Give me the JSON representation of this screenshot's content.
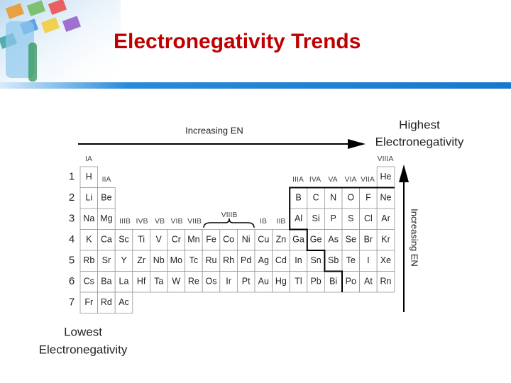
{
  "title": "Electronegativity Trends",
  "horizontal_arrow_label": "Increasing EN",
  "vertical_arrow_label": "Increasing EN",
  "highest_label": [
    "Highest",
    "Electronegativity"
  ],
  "lowest_label": [
    "Lowest",
    "Electronegativity"
  ],
  "group_labels": [
    "IA",
    "IIA",
    "IIIB",
    "IVB",
    "VB",
    "VIB",
    "VIIB",
    "VIIIB",
    "IB",
    "IIB",
    "IIIA",
    "IVA",
    "VA",
    "VIA",
    "VIIA",
    "VIIIA"
  ],
  "periods": [
    {
      "number": 1,
      "elements": [
        "H",
        null,
        null,
        null,
        null,
        null,
        null,
        null,
        null,
        null,
        null,
        null,
        null,
        null,
        null,
        null,
        null,
        "He"
      ]
    },
    {
      "number": 2,
      "elements": [
        "Li",
        "Be",
        null,
        null,
        null,
        null,
        null,
        null,
        null,
        null,
        null,
        null,
        "B",
        "C",
        "N",
        "O",
        "F",
        "Ne"
      ]
    },
    {
      "number": 3,
      "elements": [
        "Na",
        "Mg",
        null,
        null,
        null,
        null,
        null,
        null,
        null,
        null,
        null,
        null,
        "Al",
        "Si",
        "P",
        "S",
        "Cl",
        "Ar"
      ]
    },
    {
      "number": 4,
      "elements": [
        "K",
        "Ca",
        "Sc",
        "Ti",
        "V",
        "Cr",
        "Mn",
        "Fe",
        "Co",
        "Ni",
        "Cu",
        "Zn",
        "Ga",
        "Ge",
        "As",
        "Se",
        "Br",
        "Kr"
      ]
    },
    {
      "number": 5,
      "elements": [
        "Rb",
        "Sr",
        "Y",
        "Zr",
        "Nb",
        "Mo",
        "Tc",
        "Ru",
        "Rh",
        "Pd",
        "Ag",
        "Cd",
        "In",
        "Sn",
        "Sb",
        "Te",
        "I",
        "Xe"
      ]
    },
    {
      "number": 6,
      "elements": [
        "Cs",
        "Ba",
        "La",
        "Hf",
        "Ta",
        "W",
        "Re",
        "Os",
        "Ir",
        "Pt",
        "Au",
        "Hg",
        "Tl",
        "Pb",
        "Bi",
        "Po",
        "At",
        "Rn"
      ]
    },
    {
      "number": 7,
      "elements": [
        "Fr",
        "Rd",
        "Ac",
        null,
        null,
        null,
        null,
        null,
        null,
        null,
        null,
        null,
        null,
        null,
        null,
        null,
        null,
        null
      ]
    }
  ]
}
